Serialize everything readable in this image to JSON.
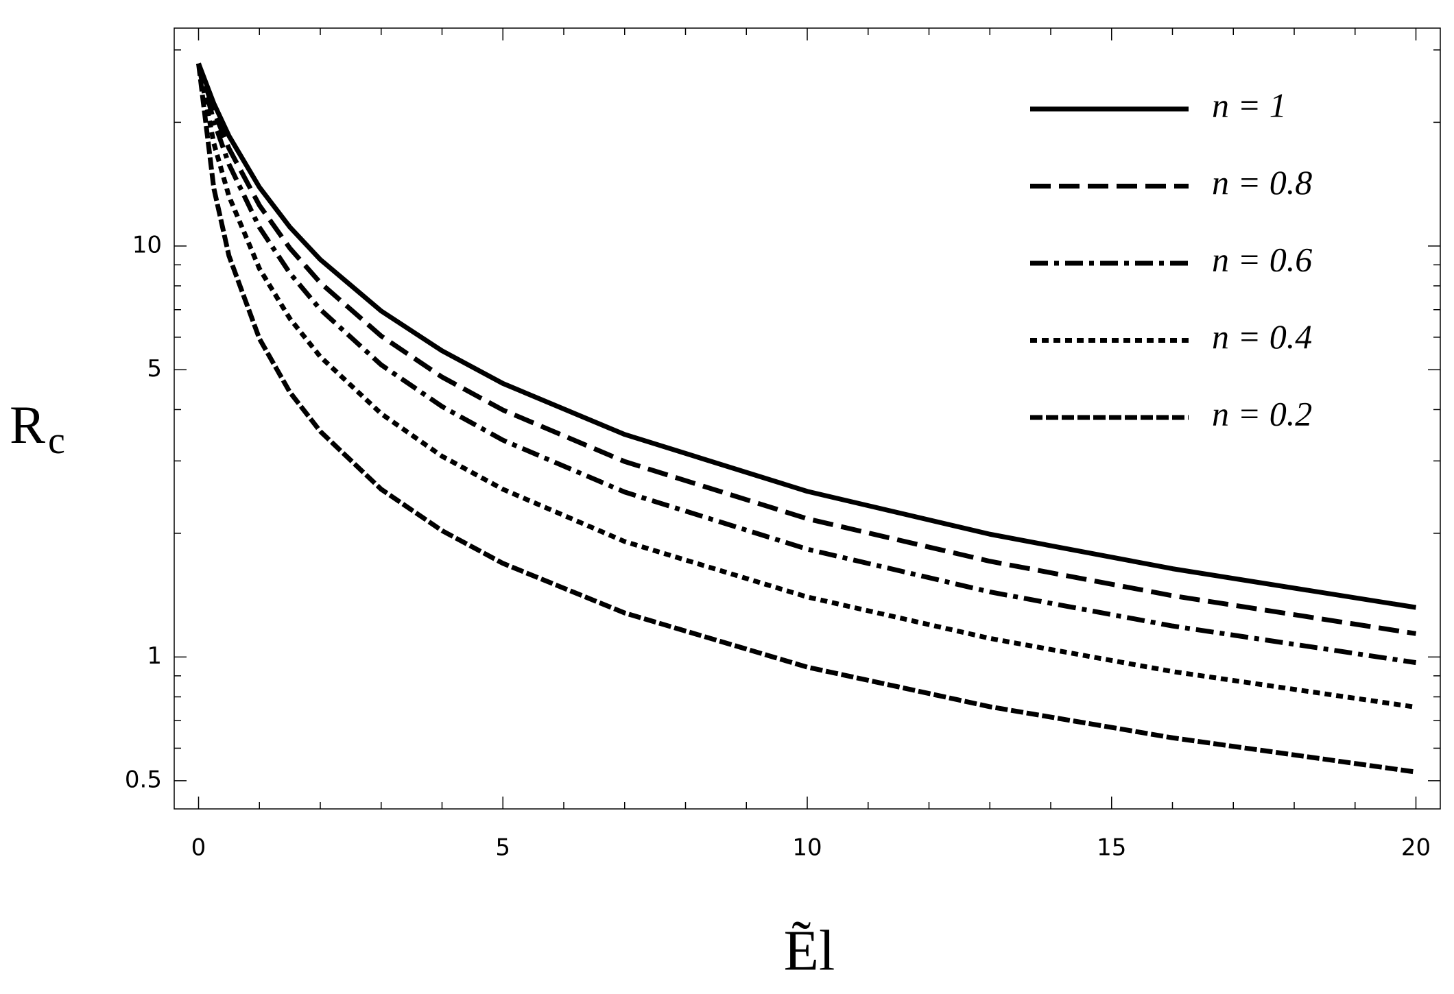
{
  "chart_data": {
    "type": "line",
    "x_label": "Ẽl",
    "y_label": {
      "main": "R",
      "sub": "c"
    },
    "x": [
      0,
      0.25,
      0.5,
      1,
      1.5,
      2,
      3,
      4,
      5,
      7,
      10,
      13,
      16,
      20
    ],
    "series": [
      {
        "name": "n = 1",
        "color": "#000000",
        "dash": "none",
        "values": [
          27.8,
          22.24,
          18.53,
          13.9,
          11.12,
          9.27,
          6.95,
          5.56,
          4.63,
          3.48,
          2.53,
          1.99,
          1.64,
          1.32
        ]
      },
      {
        "name": "n = 0.8",
        "color": "#000000",
        "dash": "30 12",
        "values": [
          27.8,
          21.29,
          17.27,
          12.56,
          9.88,
          8.14,
          6.04,
          4.8,
          3.99,
          2.99,
          2.17,
          1.71,
          1.41,
          1.14
        ]
      },
      {
        "name": "n = 0.6",
        "color": "#000000",
        "dash": "26 9 7 9",
        "values": [
          27.8,
          20.13,
          15.81,
          11.1,
          8.59,
          7.01,
          5.14,
          4.07,
          3.37,
          2.52,
          1.83,
          1.44,
          1.19,
          0.969
        ]
      },
      {
        "name": "n = 0.4",
        "color": "#000000",
        "dash": "10 7",
        "values": [
          27.8,
          17.8,
          13.21,
          8.81,
          6.66,
          5.38,
          3.91,
          3.08,
          2.56,
          1.91,
          1.4,
          1.11,
          0.922,
          0.755
        ]
      },
      {
        "name": "n = 0.2",
        "color": "#000000",
        "dash": "18 5",
        "values": [
          27.8,
          13.84,
          9.46,
          5.95,
          4.41,
          3.54,
          2.56,
          2.03,
          1.69,
          1.28,
          0.945,
          0.757,
          0.636,
          0.525
        ]
      }
    ],
    "xlim": [
      -0.4,
      20.4
    ],
    "ylim": [
      0.427,
      33.9
    ],
    "log_y": true,
    "xticks": [
      0,
      5,
      10,
      15,
      20
    ],
    "yticks": [
      0.5,
      1,
      5,
      10
    ],
    "xminorticks": [
      1,
      2,
      3,
      4,
      6,
      7,
      8,
      9,
      11,
      12,
      13,
      14,
      16,
      17,
      18,
      19
    ],
    "yminorticks": [
      0.6,
      0.7,
      0.8,
      0.9,
      2,
      3,
      4,
      6,
      7,
      8,
      9,
      20,
      30
    ],
    "grid": false,
    "legend": "upper right"
  }
}
